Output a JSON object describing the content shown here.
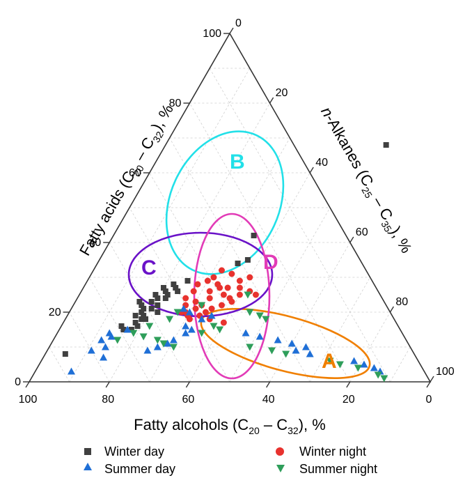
{
  "chart_data": {
    "type": "ternary-scatter",
    "axes": {
      "bottom": {
        "label": "Fatty alcohols (C",
        "sub1": "20",
        "mid": " – C",
        "sub2": "32",
        "suffix": "), %",
        "ticks": [
          "100",
          "80",
          "60",
          "40",
          "20",
          "0"
        ]
      },
      "left": {
        "label": "Fatty acids (C",
        "sub1": "20",
        "mid": " – C",
        "sub2": "32",
        "suffix": "), %",
        "ticks": [
          "0",
          "20",
          "40",
          "60",
          "80",
          "100"
        ]
      },
      "right": {
        "label_italic": "n",
        "label": "-Alkanes (C",
        "sub1": "25",
        "mid": " – C",
        "sub2": "35",
        "suffix": "), %",
        "ticks": [
          "0",
          "20",
          "40",
          "60",
          "80",
          "100"
        ]
      }
    },
    "grid": true,
    "legend_position": "bottom",
    "series": [
      {
        "name": "Winter day",
        "marker": "square",
        "color": "#404040",
        "points": [
          [
            68,
            55
          ],
          [
            42,
            35
          ],
          [
            34,
            35
          ],
          [
            35,
            37
          ],
          [
            29,
            25
          ],
          [
            28,
            22
          ],
          [
            27,
            23
          ],
          [
            26,
            21
          ],
          [
            25,
            22
          ],
          [
            24,
            20
          ],
          [
            23,
            19
          ],
          [
            22,
            21
          ],
          [
            21,
            20
          ],
          [
            20,
            18
          ],
          [
            19,
            17
          ],
          [
            18,
            19
          ],
          [
            17,
            18
          ],
          [
            16,
            15
          ],
          [
            15,
            16
          ],
          [
            18,
            20
          ],
          [
            20,
            22
          ],
          [
            22,
            17
          ],
          [
            24,
            22
          ],
          [
            26,
            24
          ],
          [
            8,
            5
          ],
          [
            19,
            19
          ],
          [
            21,
            18
          ],
          [
            23,
            16
          ],
          [
            25,
            19
          ],
          [
            27,
            20
          ],
          [
            15,
            18
          ],
          [
            16,
            19
          ]
        ]
      },
      {
        "name": "Winter night",
        "marker": "circle",
        "color": "#e8322e",
        "points": [
          [
            32,
            32
          ],
          [
            31,
            35
          ],
          [
            30,
            40
          ],
          [
            29,
            38
          ],
          [
            27,
            34
          ],
          [
            26,
            32
          ],
          [
            25,
            36
          ],
          [
            24,
            38
          ],
          [
            23,
            39
          ],
          [
            22,
            37
          ],
          [
            21,
            35
          ],
          [
            20,
            34
          ],
          [
            19,
            33
          ],
          [
            18,
            36
          ],
          [
            17,
            40
          ],
          [
            25,
            40
          ],
          [
            26,
            42
          ],
          [
            28,
            33
          ],
          [
            27,
            36
          ],
          [
            24,
            33
          ],
          [
            23,
            30
          ],
          [
            22,
            32
          ],
          [
            21,
            31
          ],
          [
            20,
            28
          ],
          [
            29,
            30
          ],
          [
            30,
            31
          ],
          [
            28,
            28
          ],
          [
            26,
            28
          ],
          [
            24,
            27
          ],
          [
            22,
            28
          ],
          [
            20,
            29
          ],
          [
            19,
            30
          ],
          [
            18,
            31
          ],
          [
            27,
            39
          ],
          [
            25,
            44
          ]
        ]
      },
      {
        "name": "Summer day",
        "marker": "triangle-up",
        "color": "#1f6fd6",
        "points": [
          [
            3,
            9
          ],
          [
            7,
            15
          ],
          [
            9,
            11
          ],
          [
            10,
            14
          ],
          [
            12,
            12
          ],
          [
            13,
            14
          ],
          [
            14,
            13
          ],
          [
            15,
            17
          ],
          [
            9,
            25
          ],
          [
            10,
            27
          ],
          [
            11,
            29
          ],
          [
            12,
            30
          ],
          [
            14,
            32
          ],
          [
            15,
            33
          ],
          [
            16,
            31
          ],
          [
            18,
            34
          ],
          [
            19,
            36
          ],
          [
            20,
            30
          ],
          [
            21,
            28
          ],
          [
            14,
            47
          ],
          [
            13,
            51
          ],
          [
            12,
            56
          ],
          [
            11,
            60
          ],
          [
            10,
            64
          ],
          [
            5,
            81
          ],
          [
            4,
            84
          ],
          [
            3,
            86
          ],
          [
            6,
            78
          ],
          [
            8,
            66
          ],
          [
            9,
            62
          ]
        ]
      },
      {
        "name": "Summer night",
        "marker": "triangle-down",
        "color": "#2e9e5a",
        "points": [
          [
            12,
            16
          ],
          [
            14,
            19
          ],
          [
            13,
            22
          ],
          [
            12,
            26
          ],
          [
            11,
            28
          ],
          [
            10,
            31
          ],
          [
            14,
            36
          ],
          [
            15,
            40
          ],
          [
            16,
            38
          ],
          [
            20,
            45
          ],
          [
            19,
            48
          ],
          [
            18,
            50
          ],
          [
            10,
            50
          ],
          [
            9,
            56
          ],
          [
            8,
            60
          ],
          [
            6,
            72
          ],
          [
            5,
            75
          ],
          [
            4,
            80
          ],
          [
            2,
            86
          ],
          [
            1,
            88
          ],
          [
            16,
            22
          ],
          [
            18,
            26
          ],
          [
            20,
            27
          ],
          [
            22,
            32
          ],
          [
            25,
            42
          ]
        ]
      }
    ],
    "regions": [
      {
        "label": "A",
        "color": "#f07f00"
      },
      {
        "label": "B",
        "color": "#22e0e8"
      },
      {
        "label": "C",
        "color": "#6a12c8"
      },
      {
        "label": "D",
        "color": "#e23bb7"
      }
    ]
  }
}
